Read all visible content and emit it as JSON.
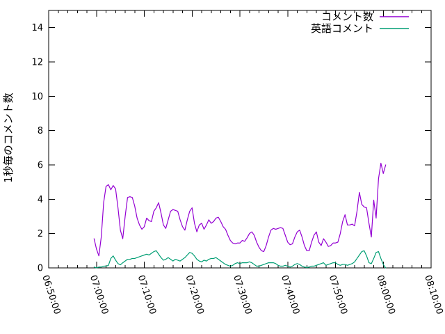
{
  "colors": {
    "background": "#ffffff",
    "axis": "#000000",
    "text": "#000000",
    "series_comment_count": "#9400d3",
    "series_english_comments": "#009e73"
  },
  "chart_data": {
    "type": "line",
    "ylabel": "1秒毎のコメント数",
    "grid": false,
    "legend_position": "top-right-inside",
    "x_axis": {
      "min": "06:50:00",
      "max": "08:10:00",
      "tick_labels": [
        "06:50:00",
        "07:00:00",
        "07:10:00",
        "07:20:00",
        "07:30:00",
        "07:40:00",
        "07:50:00",
        "08:00:00",
        "08:10:00"
      ],
      "minor_tick_seconds": 120,
      "tick_label_rotation_deg": 72
    },
    "y_axis": {
      "min": 0,
      "max": 15,
      "ticks": [
        0,
        2,
        4,
        6,
        8,
        10,
        12,
        14
      ]
    },
    "sample_start": "06:59:30",
    "sample_step_seconds": 30,
    "series": [
      {
        "name": "コメント数",
        "key": "comment-count",
        "color": "#9400d3",
        "values": [
          1.7,
          1.1,
          0.7,
          1.8,
          3.8,
          4.75,
          4.85,
          4.55,
          4.8,
          4.6,
          3.5,
          2.2,
          1.7,
          3.0,
          4.1,
          4.15,
          4.1,
          3.6,
          2.9,
          2.5,
          2.25,
          2.4,
          2.9,
          2.75,
          2.7,
          3.3,
          3.5,
          3.8,
          3.2,
          2.5,
          2.3,
          2.8,
          3.3,
          3.4,
          3.35,
          3.3,
          2.8,
          2.4,
          2.2,
          2.8,
          3.3,
          3.5,
          2.6,
          2.1,
          2.5,
          2.6,
          2.25,
          2.5,
          2.8,
          2.6,
          2.7,
          2.9,
          2.95,
          2.7,
          2.4,
          2.25,
          1.9,
          1.6,
          1.45,
          1.4,
          1.45,
          1.45,
          1.6,
          1.55,
          1.75,
          2.0,
          2.1,
          1.9,
          1.5,
          1.2,
          1.0,
          0.95,
          1.3,
          1.8,
          2.2,
          2.3,
          2.25,
          2.3,
          2.35,
          2.3,
          1.9,
          1.5,
          1.35,
          1.4,
          1.8,
          2.1,
          2.2,
          1.8,
          1.3,
          1.0,
          1.0,
          1.5,
          1.9,
          2.1,
          1.5,
          1.3,
          1.7,
          1.5,
          1.25,
          1.3,
          1.45,
          1.45,
          1.5,
          2.0,
          2.7,
          3.1,
          2.5,
          2.5,
          2.55,
          2.45,
          3.3,
          4.4,
          3.7,
          3.55,
          3.5,
          2.6,
          1.8,
          3.95,
          2.9,
          5.2,
          6.1,
          5.5,
          6.0
        ]
      },
      {
        "name": "英語コメント",
        "key": "english-comments",
        "color": "#009e73",
        "values": [
          0.05,
          0.0,
          0.05,
          0.05,
          0.1,
          0.1,
          0.15,
          0.55,
          0.7,
          0.45,
          0.25,
          0.18,
          0.3,
          0.4,
          0.5,
          0.5,
          0.55,
          0.55,
          0.6,
          0.65,
          0.7,
          0.75,
          0.8,
          0.75,
          0.85,
          0.95,
          1.0,
          0.8,
          0.6,
          0.45,
          0.5,
          0.6,
          0.5,
          0.4,
          0.5,
          0.45,
          0.4,
          0.5,
          0.6,
          0.75,
          0.9,
          0.85,
          0.7,
          0.5,
          0.4,
          0.35,
          0.45,
          0.4,
          0.5,
          0.55,
          0.55,
          0.6,
          0.5,
          0.4,
          0.3,
          0.2,
          0.15,
          0.1,
          0.15,
          0.25,
          0.3,
          0.25,
          0.3,
          0.3,
          0.3,
          0.35,
          0.3,
          0.2,
          0.1,
          0.1,
          0.15,
          0.2,
          0.25,
          0.3,
          0.3,
          0.3,
          0.25,
          0.15,
          0.1,
          0.1,
          0.15,
          0.1,
          0.05,
          0.1,
          0.2,
          0.25,
          0.2,
          0.1,
          0.05,
          0.02,
          0.05,
          0.1,
          0.1,
          0.15,
          0.2,
          0.25,
          0.3,
          0.15,
          0.2,
          0.25,
          0.3,
          0.3,
          0.2,
          0.15,
          0.2,
          0.2,
          0.15,
          0.2,
          0.25,
          0.35,
          0.55,
          0.75,
          0.95,
          1.0,
          0.7,
          0.3,
          0.25,
          0.55,
          0.9,
          0.95,
          0.55,
          0.2,
          0.0
        ]
      }
    ]
  }
}
